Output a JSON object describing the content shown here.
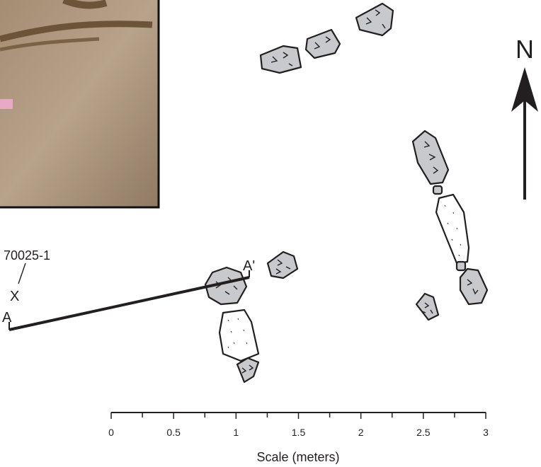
{
  "north_arrow": {
    "label": "N"
  },
  "datum": {
    "label": "70025-1",
    "marker": "X"
  },
  "profile": {
    "start_label": "A",
    "end_label": "A'"
  },
  "scale": {
    "title": "Scale (meters)",
    "range": [
      0,
      3
    ],
    "ticks": [
      0,
      0.5,
      1,
      1.5,
      2,
      2.5,
      3
    ]
  }
}
